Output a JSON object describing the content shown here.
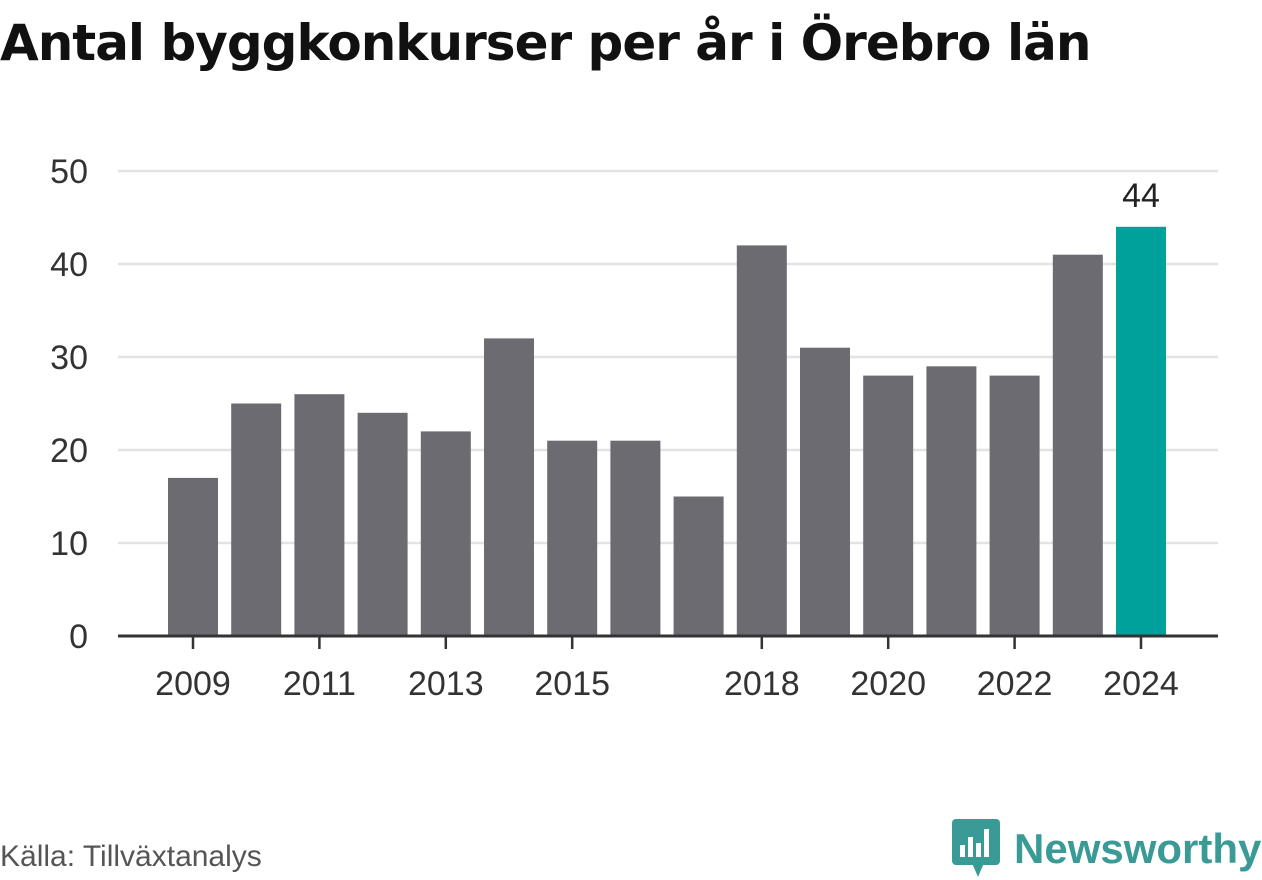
{
  "header": {
    "title": "Antal byggkonkurser per år i Örebro län"
  },
  "footer": {
    "source": "Källa: Tillväxtanalys",
    "brand": "Newsworthy"
  },
  "colors": {
    "bar": "#6c6b72",
    "highlight": "#00a19a",
    "grid": "#e3e3e3",
    "axis": "#333333",
    "brand": "#3a9a96"
  },
  "icons": {
    "brand_logo": "newsworthy-bar-chart-bubble-icon"
  },
  "chart_data": {
    "type": "bar",
    "title": "Antal byggkonkurser per år i Örebro län",
    "xlabel": "",
    "ylabel": "",
    "categories": [
      "2009",
      "2010",
      "2011",
      "2012",
      "2013",
      "2014",
      "2015",
      "2016",
      "2017",
      "2018",
      "2019",
      "2020",
      "2021",
      "2022",
      "2023",
      "2024"
    ],
    "values": [
      17,
      25,
      26,
      24,
      22,
      32,
      21,
      21,
      15,
      42,
      31,
      28,
      29,
      28,
      41,
      44
    ],
    "x_tick_labels": [
      "2009",
      "2011",
      "2013",
      "2015",
      "2018",
      "2020",
      "2022",
      "2024"
    ],
    "y_ticks": [
      "0",
      "10",
      "20",
      "30",
      "40",
      "50"
    ],
    "ylim": [
      0,
      50
    ],
    "highlight": {
      "category": "2024",
      "label": "44"
    },
    "grid": true,
    "legend": "none"
  }
}
